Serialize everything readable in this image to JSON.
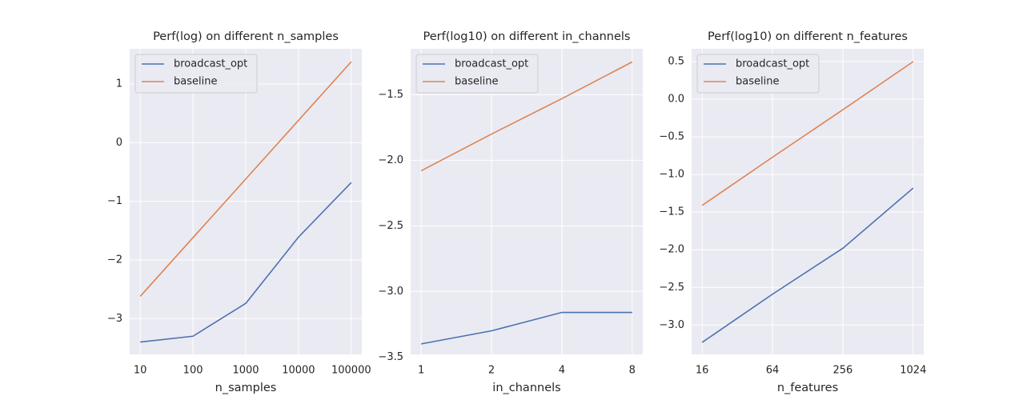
{
  "chart_data": [
    {
      "type": "line",
      "title": "Perf(log) on different n_samples",
      "xlabel": "n_samples",
      "categories": [
        "10",
        "100",
        "1000",
        "10000",
        "100000"
      ],
      "series": [
        {
          "name": "broadcast_opt",
          "color": "#4c72b0",
          "values": [
            -3.4,
            -3.3,
            -2.74,
            -1.61,
            -0.68
          ]
        },
        {
          "name": "baseline",
          "color": "#dd8452",
          "values": [
            -2.62,
            -1.62,
            -0.62,
            0.38,
            1.38
          ]
        }
      ],
      "ylim": [
        -3.61,
        1.6
      ],
      "yticks": [
        {
          "value": -3,
          "label": "−3"
        },
        {
          "value": -2,
          "label": "−2"
        },
        {
          "value": -1,
          "label": "−1"
        },
        0,
        1
      ],
      "grid": true,
      "legend": "upper left"
    },
    {
      "type": "line",
      "title": "Perf(log10) on different in_channels",
      "xlabel": "in_channels",
      "categories": [
        "1",
        "2",
        "4",
        "8"
      ],
      "series": [
        {
          "name": "broadcast_opt",
          "color": "#4c72b0",
          "values": [
            -3.4,
            -3.3,
            -3.16,
            -3.16
          ]
        },
        {
          "name": "baseline",
          "color": "#dd8452",
          "values": [
            -2.08,
            -1.8,
            -1.53,
            -1.25
          ]
        }
      ],
      "ylim": [
        -3.48,
        -1.15
      ],
      "yticks": [
        {
          "value": -3.5,
          "label": "−3.5"
        },
        {
          "value": -3.0,
          "label": "−3.0"
        },
        {
          "value": -2.5,
          "label": "−2.5"
        },
        {
          "value": -2.0,
          "label": "−2.0"
        },
        {
          "value": -1.5,
          "label": "−1.5"
        }
      ],
      "grid": true,
      "legend": "upper left"
    },
    {
      "type": "line",
      "title": "Perf(log10) on different n_features",
      "xlabel": "n_features",
      "categories": [
        "16",
        "64",
        "256",
        "1024"
      ],
      "series": [
        {
          "name": "broadcast_opt",
          "color": "#4c72b0",
          "values": [
            -3.23,
            -2.59,
            -1.98,
            -1.18
          ]
        },
        {
          "name": "baseline",
          "color": "#dd8452",
          "values": [
            -1.41,
            -0.77,
            -0.14,
            0.5
          ]
        }
      ],
      "ylim": [
        -3.39,
        0.67
      ],
      "yticks": [
        {
          "value": -3.0,
          "label": "−3.0"
        },
        {
          "value": -2.5,
          "label": "−2.5"
        },
        {
          "value": -2.0,
          "label": "−2.0"
        },
        {
          "value": -1.5,
          "label": "−1.5"
        },
        {
          "value": -1.0,
          "label": "−1.0"
        },
        {
          "value": -0.5,
          "label": "−0.5"
        },
        {
          "value": 0.0,
          "label": "0.0"
        },
        0.5
      ],
      "grid": true,
      "legend": "upper left"
    }
  ]
}
